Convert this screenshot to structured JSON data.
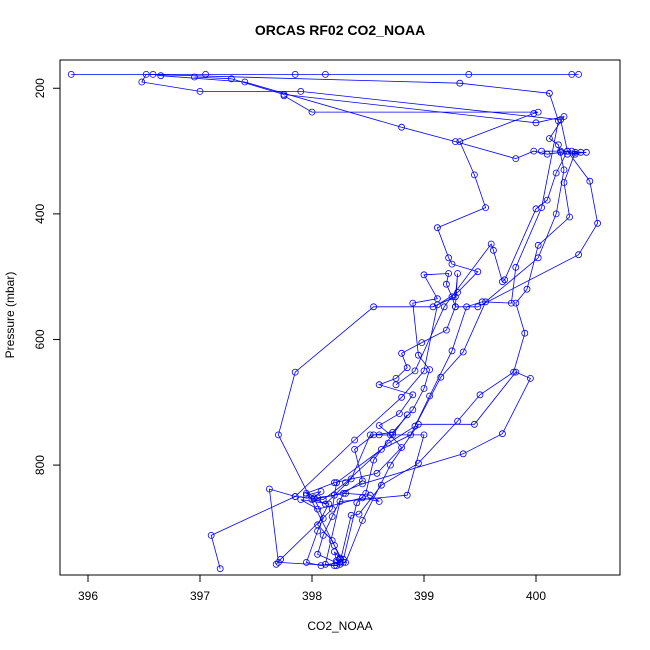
{
  "chart_data": {
    "type": "line",
    "title": "ORCAS RF02 CO2_NOAA",
    "xlabel": "CO2_NOAA",
    "ylabel": "Pressure (mbar)",
    "xlim": [
      395.75,
      400.75
    ],
    "ylim": [
      975,
      155
    ],
    "x_ticks": [
      396,
      397,
      398,
      399,
      400
    ],
    "y_ticks": [
      200,
      400,
      600,
      800
    ],
    "grid": false,
    "legend": "none",
    "series": [
      {
        "color": "#0000ff",
        "marker": "open-circle",
        "points": [
          [
            398.25,
            950
          ],
          [
            398.22,
            952
          ],
          [
            398.2,
            938
          ],
          [
            398.25,
            948
          ],
          [
            398.18,
            920
          ],
          [
            398.05,
            895
          ],
          [
            398.15,
            862
          ],
          [
            397.9,
            855
          ],
          [
            398.05,
            870
          ],
          [
            398.45,
            852
          ],
          [
            398.6,
            858
          ],
          [
            398.52,
            848
          ],
          [
            398.3,
            845
          ],
          [
            398.05,
            852
          ],
          [
            397.95,
            845
          ],
          [
            398.2,
            828
          ],
          [
            398.58,
            813
          ],
          [
            398.8,
            772
          ],
          [
            398.7,
            752
          ],
          [
            398.6,
            737
          ],
          [
            398.78,
            718
          ],
          [
            398.9,
            688
          ],
          [
            398.6,
            672
          ],
          [
            398.75,
            662
          ],
          [
            398.85,
            645
          ],
          [
            398.8,
            622
          ],
          [
            398.98,
            605
          ],
          [
            399.2,
            585
          ],
          [
            399.28,
            548
          ],
          [
            399.25,
            532
          ],
          [
            399.2,
            512
          ],
          [
            399.22,
            495
          ],
          [
            399.0,
            497
          ],
          [
            399.12,
            535
          ],
          [
            398.9,
            542
          ],
          [
            398.95,
            625
          ],
          [
            399.05,
            648
          ],
          [
            399.0,
            678
          ],
          [
            398.9,
            712
          ],
          [
            398.72,
            748
          ],
          [
            398.55,
            752
          ],
          [
            398.38,
            775
          ],
          [
            398.45,
            825
          ],
          [
            398.28,
            845
          ],
          [
            398.18,
            882
          ],
          [
            398.1,
            912
          ],
          [
            398.05,
            942
          ],
          [
            398.25,
            958
          ],
          [
            398.2,
            960
          ],
          [
            397.7,
            955
          ],
          [
            397.62,
            838
          ],
          [
            397.85,
            850
          ],
          [
            398.1,
            855
          ],
          [
            398.3,
            828
          ],
          [
            398.68,
            765
          ],
          [
            398.92,
            738
          ],
          [
            399.05,
            690
          ],
          [
            399.25,
            618
          ],
          [
            399.38,
            548
          ],
          [
            399.52,
            540
          ],
          [
            399.78,
            542
          ],
          [
            399.82,
            485
          ],
          [
            400.05,
            390
          ],
          [
            400.2,
            252
          ],
          [
            400.12,
            208
          ],
          [
            399.32,
            192
          ],
          [
            396.52,
            178
          ],
          [
            396.48,
            190
          ],
          [
            397.0,
            205
          ],
          [
            397.9,
            205
          ],
          [
            400.22,
            250
          ],
          [
            400.28,
            300
          ],
          [
            400.48,
            348
          ],
          [
            400.55,
            415
          ],
          [
            400.38,
            465
          ],
          [
            399.48,
            548
          ],
          [
            399.28,
            548
          ],
          [
            399.3,
            495
          ],
          [
            399.28,
            532
          ],
          [
            399.08,
            548
          ],
          [
            398.55,
            548
          ],
          [
            397.85,
            652
          ],
          [
            397.7,
            752
          ],
          [
            398.2,
            928
          ],
          [
            398.28,
            955
          ]
        ]
      },
      {
        "color": "#0000ff",
        "marker": "open-circle",
        "points": [
          [
            398.22,
            955
          ],
          [
            398.28,
            950
          ],
          [
            398.4,
            860
          ],
          [
            398.48,
            845
          ],
          [
            398.55,
            792
          ],
          [
            398.85,
            720
          ],
          [
            398.72,
            752
          ],
          [
            398.52,
            752
          ],
          [
            398.35,
            822
          ],
          [
            398.12,
            862
          ],
          [
            397.95,
            848
          ],
          [
            398.08,
            842
          ],
          [
            398.02,
            852
          ],
          [
            398.1,
            885
          ],
          [
            398.05,
            905
          ],
          [
            397.95,
            955
          ],
          [
            398.08,
            960
          ],
          [
            398.25,
            955
          ],
          [
            398.35,
            880
          ],
          [
            398.42,
            878
          ],
          [
            398.62,
            832
          ],
          [
            398.95,
            797
          ],
          [
            399.3,
            730
          ],
          [
            399.5,
            688
          ],
          [
            399.8,
            652
          ],
          [
            399.9,
            590
          ],
          [
            399.82,
            542
          ],
          [
            399.92,
            520
          ],
          [
            400.02,
            450
          ],
          [
            400.3,
            405
          ],
          [
            400.25,
            350
          ],
          [
            400.35,
            302
          ],
          [
            400.45,
            302
          ],
          [
            400.28,
            305
          ],
          [
            400.22,
            302
          ],
          [
            400.1,
            305
          ],
          [
            399.98,
            300
          ],
          [
            399.82,
            312
          ],
          [
            399.28,
            285
          ],
          [
            398.8,
            262
          ],
          [
            397.4,
            190
          ],
          [
            396.65,
            180
          ],
          [
            396.58,
            178
          ],
          [
            397.05,
            178
          ],
          [
            397.85,
            178
          ],
          [
            400.38,
            178
          ],
          [
            400.32,
            178
          ],
          [
            399.4,
            178
          ],
          [
            398.12,
            178
          ],
          [
            395.85,
            178
          ]
        ]
      },
      {
        "color": "#0000ff",
        "marker": "open-circle",
        "points": [
          [
            397.68,
            958
          ],
          [
            397.72,
            950
          ],
          [
            398.18,
            870
          ],
          [
            398.22,
            828
          ],
          [
            398.62,
            775
          ],
          [
            398.88,
            752
          ],
          [
            399.15,
            660
          ],
          [
            399.35,
            620
          ],
          [
            399.55,
            540
          ],
          [
            400.02,
            470
          ],
          [
            400.18,
            400
          ],
          [
            400.25,
            330
          ],
          [
            400.2,
            290
          ],
          [
            400.12,
            280
          ],
          [
            400.25,
            245
          ],
          [
            400.0,
            255
          ],
          [
            397.75,
            210
          ],
          [
            397.28,
            185
          ],
          [
            396.95,
            182
          ]
        ]
      },
      {
        "color": "#0000ff",
        "marker": "open-circle",
        "points": [
          [
            397.18,
            965
          ],
          [
            397.1,
            912
          ],
          [
            397.85,
            850
          ],
          [
            398.38,
            760
          ],
          [
            398.8,
            692
          ],
          [
            399.0,
            650
          ],
          [
            399.12,
            545
          ],
          [
            399.3,
            525
          ],
          [
            399.48,
            492
          ],
          [
            399.25,
            480
          ],
          [
            399.22,
            470
          ],
          [
            399.12,
            422
          ],
          [
            399.55,
            390
          ],
          [
            399.45,
            338
          ],
          [
            399.32,
            285
          ],
          [
            399.98,
            240
          ],
          [
            400.02,
            238
          ],
          [
            398.0,
            238
          ],
          [
            397.75,
            212
          ]
        ]
      },
      {
        "color": "#0000ff",
        "marker": "open-circle",
        "points": [
          [
            398.75,
            672
          ],
          [
            398.92,
            650
          ],
          [
            399.18,
            548
          ],
          [
            399.6,
            448
          ],
          [
            399.62,
            458
          ],
          [
            399.7,
            508
          ],
          [
            399.72,
            505
          ],
          [
            400.0,
            392
          ],
          [
            400.1,
            378
          ],
          [
            400.18,
            335
          ],
          [
            400.28,
            300
          ],
          [
            400.35,
            305
          ],
          [
            400.4,
            302
          ],
          [
            400.32,
            300
          ],
          [
            400.22,
            300
          ],
          [
            400.05,
            300
          ]
        ]
      },
      {
        "color": "#0000ff",
        "marker": "open-circle",
        "points": [
          [
            398.6,
            752
          ],
          [
            399.0,
            752
          ],
          [
            398.85,
            848
          ],
          [
            398.25,
            858
          ],
          [
            398.12,
            958
          ],
          [
            398.22,
            960
          ],
          [
            398.3,
            955
          ],
          [
            398.45,
            888
          ],
          [
            398.7,
            800
          ],
          [
            398.95,
            735
          ],
          [
            399.45,
            735
          ],
          [
            399.82,
            652
          ],
          [
            399.95,
            662
          ],
          [
            399.7,
            750
          ],
          [
            399.35,
            782
          ],
          [
            398.45,
            830
          ],
          [
            398.2,
            848
          ],
          [
            398.0,
            855
          ]
        ]
      }
    ]
  }
}
